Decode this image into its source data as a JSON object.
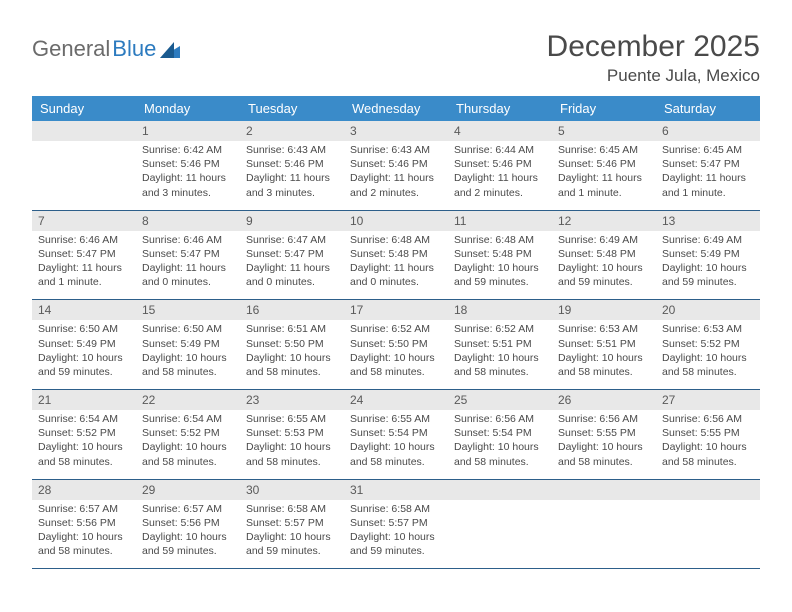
{
  "logo": {
    "part1": "General",
    "part2": "Blue"
  },
  "title": "December 2025",
  "location": "Puente Jula, Mexico",
  "colors": {
    "header_bg": "#3a8bc9",
    "header_text": "#ffffff",
    "daynum_bg": "#e8e8e8",
    "row_border": "#2d5f8a",
    "text": "#4a4a4a",
    "logo_gray": "#6b6b6b",
    "logo_blue": "#2d7bbf"
  },
  "weekdays": [
    "Sunday",
    "Monday",
    "Tuesday",
    "Wednesday",
    "Thursday",
    "Friday",
    "Saturday"
  ],
  "weeks": [
    {
      "nums": [
        "",
        "1",
        "2",
        "3",
        "4",
        "5",
        "6"
      ],
      "info": [
        "",
        "Sunrise: 6:42 AM\nSunset: 5:46 PM\nDaylight: 11 hours and 3 minutes.",
        "Sunrise: 6:43 AM\nSunset: 5:46 PM\nDaylight: 11 hours and 3 minutes.",
        "Sunrise: 6:43 AM\nSunset: 5:46 PM\nDaylight: 11 hours and 2 minutes.",
        "Sunrise: 6:44 AM\nSunset: 5:46 PM\nDaylight: 11 hours and 2 minutes.",
        "Sunrise: 6:45 AM\nSunset: 5:46 PM\nDaylight: 11 hours and 1 minute.",
        "Sunrise: 6:45 AM\nSunset: 5:47 PM\nDaylight: 11 hours and 1 minute."
      ]
    },
    {
      "nums": [
        "7",
        "8",
        "9",
        "10",
        "11",
        "12",
        "13"
      ],
      "info": [
        "Sunrise: 6:46 AM\nSunset: 5:47 PM\nDaylight: 11 hours and 1 minute.",
        "Sunrise: 6:46 AM\nSunset: 5:47 PM\nDaylight: 11 hours and 0 minutes.",
        "Sunrise: 6:47 AM\nSunset: 5:47 PM\nDaylight: 11 hours and 0 minutes.",
        "Sunrise: 6:48 AM\nSunset: 5:48 PM\nDaylight: 11 hours and 0 minutes.",
        "Sunrise: 6:48 AM\nSunset: 5:48 PM\nDaylight: 10 hours and 59 minutes.",
        "Sunrise: 6:49 AM\nSunset: 5:48 PM\nDaylight: 10 hours and 59 minutes.",
        "Sunrise: 6:49 AM\nSunset: 5:49 PM\nDaylight: 10 hours and 59 minutes."
      ]
    },
    {
      "nums": [
        "14",
        "15",
        "16",
        "17",
        "18",
        "19",
        "20"
      ],
      "info": [
        "Sunrise: 6:50 AM\nSunset: 5:49 PM\nDaylight: 10 hours and 59 minutes.",
        "Sunrise: 6:50 AM\nSunset: 5:49 PM\nDaylight: 10 hours and 58 minutes.",
        "Sunrise: 6:51 AM\nSunset: 5:50 PM\nDaylight: 10 hours and 58 minutes.",
        "Sunrise: 6:52 AM\nSunset: 5:50 PM\nDaylight: 10 hours and 58 minutes.",
        "Sunrise: 6:52 AM\nSunset: 5:51 PM\nDaylight: 10 hours and 58 minutes.",
        "Sunrise: 6:53 AM\nSunset: 5:51 PM\nDaylight: 10 hours and 58 minutes.",
        "Sunrise: 6:53 AM\nSunset: 5:52 PM\nDaylight: 10 hours and 58 minutes."
      ]
    },
    {
      "nums": [
        "21",
        "22",
        "23",
        "24",
        "25",
        "26",
        "27"
      ],
      "info": [
        "Sunrise: 6:54 AM\nSunset: 5:52 PM\nDaylight: 10 hours and 58 minutes.",
        "Sunrise: 6:54 AM\nSunset: 5:52 PM\nDaylight: 10 hours and 58 minutes.",
        "Sunrise: 6:55 AM\nSunset: 5:53 PM\nDaylight: 10 hours and 58 minutes.",
        "Sunrise: 6:55 AM\nSunset: 5:54 PM\nDaylight: 10 hours and 58 minutes.",
        "Sunrise: 6:56 AM\nSunset: 5:54 PM\nDaylight: 10 hours and 58 minutes.",
        "Sunrise: 6:56 AM\nSunset: 5:55 PM\nDaylight: 10 hours and 58 minutes.",
        "Sunrise: 6:56 AM\nSunset: 5:55 PM\nDaylight: 10 hours and 58 minutes."
      ]
    },
    {
      "nums": [
        "28",
        "29",
        "30",
        "31",
        "",
        "",
        ""
      ],
      "info": [
        "Sunrise: 6:57 AM\nSunset: 5:56 PM\nDaylight: 10 hours and 58 minutes.",
        "Sunrise: 6:57 AM\nSunset: 5:56 PM\nDaylight: 10 hours and 59 minutes.",
        "Sunrise: 6:58 AM\nSunset: 5:57 PM\nDaylight: 10 hours and 59 minutes.",
        "Sunrise: 6:58 AM\nSunset: 5:57 PM\nDaylight: 10 hours and 59 minutes.",
        "",
        "",
        ""
      ]
    }
  ]
}
